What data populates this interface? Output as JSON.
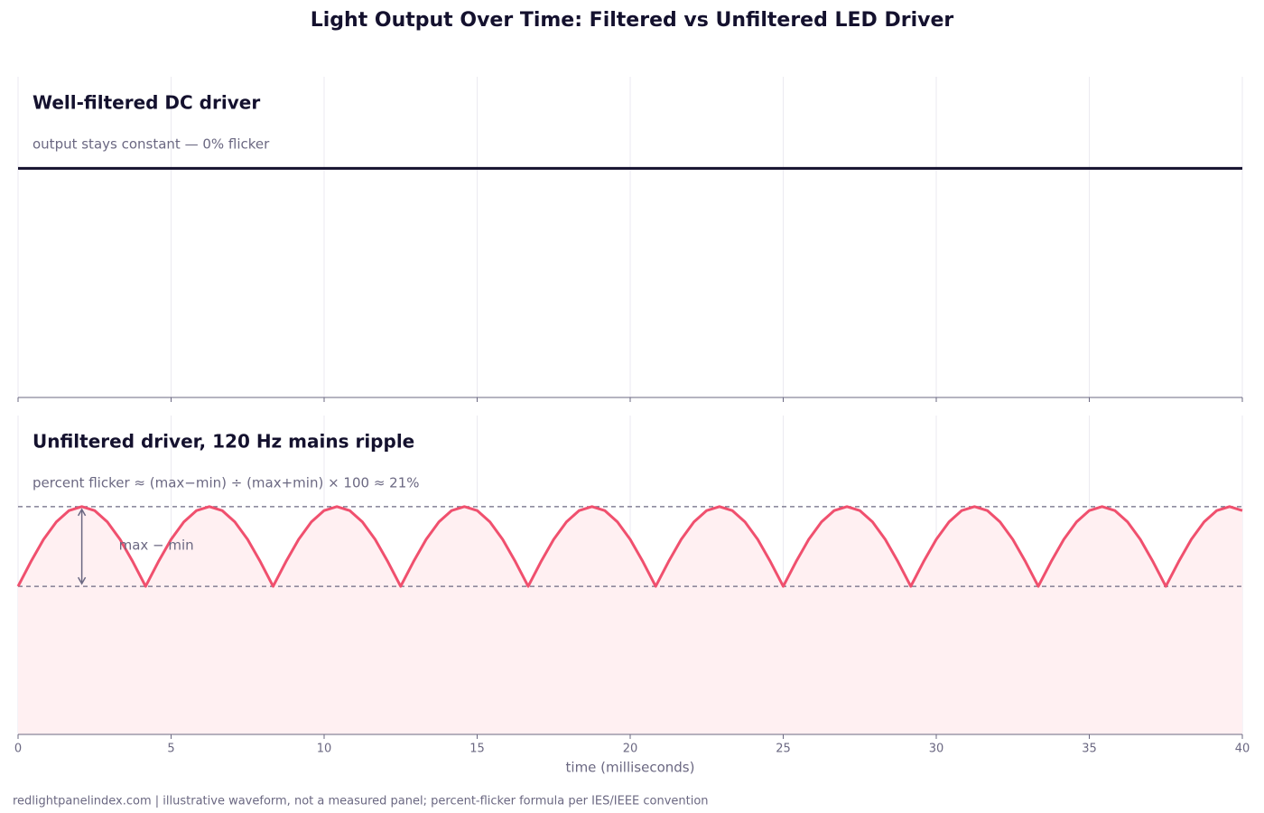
{
  "title": "Light Output Over Time: Filtered vs Unfiltered LED Driver",
  "footer": "redlightpanelindex.com | illustrative waveform, not a measured panel; percent-flicker formula per IES/IEEE convention",
  "chart_data": [
    {
      "type": "line",
      "title": "Well-filtered DC driver",
      "subtitle": "output stays constant — 0% flicker",
      "x": [
        0,
        40
      ],
      "values": [
        1,
        1
      ],
      "color": "#14112e",
      "xlim": [
        0,
        40
      ],
      "xticks": [
        0,
        5,
        10,
        15,
        20,
        25,
        30,
        35,
        40
      ],
      "ylim": [
        0,
        1.4
      ],
      "grid": true
    },
    {
      "type": "area",
      "title": "Unfiltered driver, 120 Hz mains ripple",
      "subtitle": "percent flicker ≈ (max−min) ÷ (max+min) × 100 ≈ 21%",
      "xlabel": "time (milliseconds)",
      "annotation": "max − min",
      "x": [
        0,
        0.417,
        0.833,
        1.25,
        1.667,
        2.083,
        2.5,
        2.917,
        3.333,
        3.75,
        4.167,
        4.583,
        5,
        5.417,
        5.833,
        6.25,
        6.667,
        7.083,
        7.5,
        7.917,
        8.333,
        8.75,
        9.167,
        9.583,
        10,
        10.417,
        10.833,
        11.25,
        11.667,
        12.083,
        12.5,
        12.917,
        13.333,
        13.75,
        14.167,
        14.583,
        15,
        15.417,
        15.833,
        16.25,
        16.667,
        17.083,
        17.5,
        17.917,
        18.333,
        18.75,
        19.167,
        19.583,
        20,
        20.417,
        20.833,
        21.25,
        21.667,
        22.083,
        22.5,
        22.917,
        23.333,
        23.75,
        24.167,
        24.583,
        25,
        25.417,
        25.833,
        26.25,
        26.667,
        27.083,
        27.5,
        27.917,
        28.333,
        28.75,
        29.167,
        29.583,
        30,
        30.417,
        30.833,
        31.25,
        31.667,
        32.083,
        32.5,
        32.917,
        33.333,
        33.75,
        34.167,
        34.583,
        35,
        35.417,
        35.833,
        36.25,
        36.667,
        37.083,
        37.5,
        37.917,
        38.333,
        38.75,
        39.167,
        39.583,
        40
      ],
      "values": [
        0.65,
        0.758,
        0.856,
        0.933,
        0.983,
        1,
        0.983,
        0.933,
        0.856,
        0.758,
        0.65,
        0.758,
        0.856,
        0.933,
        0.983,
        1,
        0.983,
        0.933,
        0.856,
        0.758,
        0.65,
        0.758,
        0.856,
        0.933,
        0.983,
        1,
        0.983,
        0.933,
        0.856,
        0.758,
        0.65,
        0.758,
        0.856,
        0.933,
        0.983,
        1,
        0.983,
        0.933,
        0.856,
        0.758,
        0.65,
        0.758,
        0.856,
        0.933,
        0.983,
        1,
        0.983,
        0.933,
        0.856,
        0.758,
        0.65,
        0.758,
        0.856,
        0.933,
        0.983,
        1,
        0.983,
        0.933,
        0.856,
        0.758,
        0.65,
        0.758,
        0.856,
        0.933,
        0.983,
        1,
        0.983,
        0.933,
        0.856,
        0.758,
        0.65,
        0.758,
        0.856,
        0.933,
        0.983,
        1,
        0.983,
        0.933,
        0.856,
        0.758,
        0.65,
        0.758,
        0.856,
        0.933,
        0.983,
        1,
        0.983,
        0.933,
        0.856,
        0.758,
        0.65,
        0.758,
        0.856,
        0.933,
        0.983,
        1,
        0.983
      ],
      "color": "#f0506e",
      "fill_color": "#fff0f2",
      "reference_lines": [
        1,
        0.65
      ],
      "reference_color": "#6b6882",
      "xlim": [
        0,
        40
      ],
      "xticks": [
        0,
        5,
        10,
        15,
        20,
        25,
        30,
        35,
        40
      ],
      "ylim": [
        0,
        1.4
      ],
      "grid": true
    }
  ]
}
